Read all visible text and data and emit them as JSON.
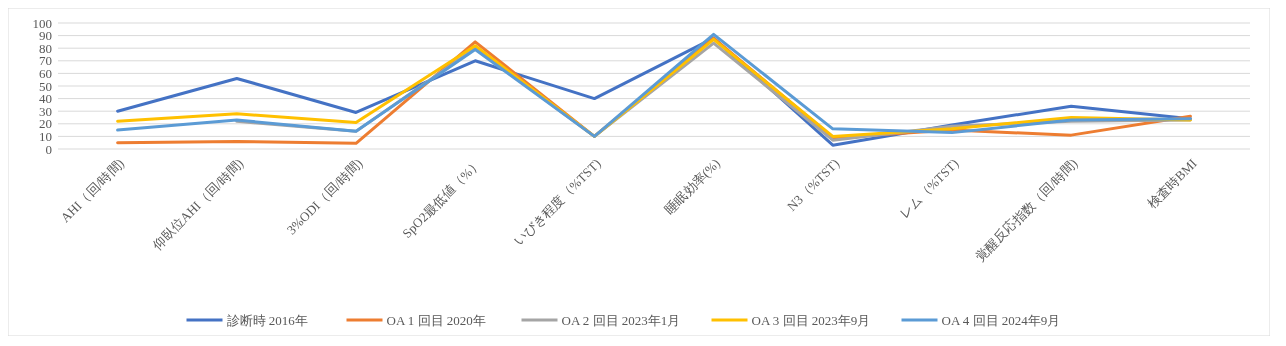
{
  "chart_data": {
    "type": "line",
    "categories": [
      "AHI（回/時間)",
      "仰臥位AHI（回/時間)",
      "3%ODI（回/時間)",
      "SpO2最低値（%）",
      "いびき程度（%TST)",
      "睡眠効率(%)",
      "N3（%TST)",
      "レム（%TST)",
      "覚醒反応指数（回/時間)",
      "検査時BMI"
    ],
    "ylim": [
      0,
      100
    ],
    "yticks": [
      0,
      10,
      20,
      30,
      40,
      50,
      60,
      70,
      80,
      90,
      100
    ],
    "grid": "y",
    "legend": "bottom",
    "marker": "none",
    "line_style": "solid",
    "series": [
      {
        "name": "診断時 2016年",
        "color": "#4472c4",
        "values": [
          30,
          56,
          29,
          70,
          40,
          88,
          3,
          19,
          34,
          24
        ]
      },
      {
        "name": "OA 1 回目 2020年",
        "color": "#ed7d31",
        "values": [
          5,
          6,
          4.5,
          85,
          10,
          88,
          9,
          15,
          11,
          26
        ]
      },
      {
        "name": "OA 2 回目 2023年1月",
        "color": "#a5a5a5",
        "values": [
          null,
          22,
          14,
          80,
          10,
          84,
          7,
          18,
          22,
          23
        ]
      },
      {
        "name": "OA 3 回目 2023年9月",
        "color": "#ffc000",
        "values": [
          22,
          28,
          21,
          82,
          10,
          87,
          10,
          16,
          25,
          23
        ]
      },
      {
        "name": "OA 4 回目 2024年9月",
        "color": "#5b9bd5",
        "values": [
          15,
          23,
          14,
          79,
          10,
          91,
          16,
          13,
          23,
          24
        ]
      }
    ]
  }
}
